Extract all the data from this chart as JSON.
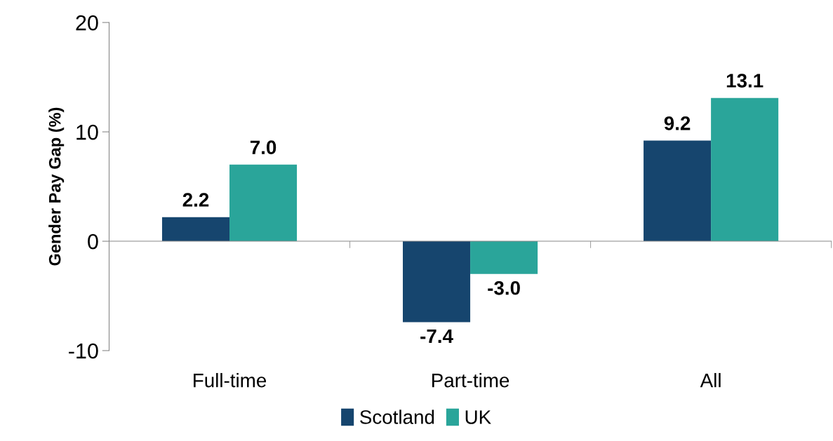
{
  "chart_data": {
    "type": "bar",
    "ylabel": "Gender Pay Gap (%)",
    "categories": [
      "Full-time",
      "Part-time",
      "All"
    ],
    "series": [
      {
        "name": "Scotland",
        "color": "#16456e",
        "values": [
          2.2,
          -7.4,
          9.2
        ],
        "value_labels": [
          "2.2",
          "-7.4",
          "9.2"
        ]
      },
      {
        "name": "UK",
        "color": "#2aa59a",
        "values": [
          7.0,
          -3.0,
          13.1
        ],
        "value_labels": [
          "7.0",
          "-3.0",
          "13.1"
        ]
      }
    ],
    "ylim": [
      -10,
      20
    ],
    "yticks": [
      -10,
      0,
      10,
      20
    ],
    "legend": "bottom"
  }
}
